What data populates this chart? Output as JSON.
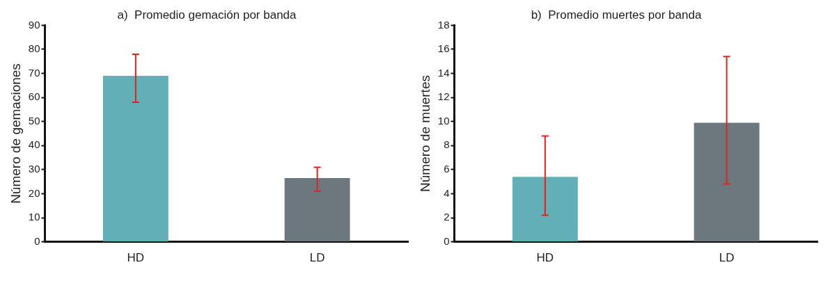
{
  "chart_data": [
    {
      "type": "bar",
      "title": "a)  Promedio gemación por banda",
      "ylabel": "Número de gemaciones",
      "categories": [
        "HD",
        "LD"
      ],
      "values": [
        69,
        26.5
      ],
      "colors": [
        "#63afb7",
        "#6c787d"
      ],
      "errors": [
        [
          58,
          78
        ],
        [
          21,
          31
        ]
      ],
      "ylim": [
        0,
        90
      ],
      "yticks": [
        0,
        10,
        20,
        30,
        40,
        50,
        60,
        70,
        80,
        90
      ],
      "grid": false,
      "legend": false
    },
    {
      "type": "bar",
      "title": "b)  Promedio muertes por banda",
      "ylabel": "Número de muertes",
      "categories": [
        "HD",
        "LD"
      ],
      "values": [
        5.4,
        9.9
      ],
      "colors": [
        "#63afb7",
        "#6c787d"
      ],
      "errors": [
        [
          2.2,
          8.8
        ],
        [
          4.8,
          15.4
        ]
      ],
      "ylim": [
        0,
        18
      ],
      "yticks": [
        0,
        2,
        4,
        6,
        8,
        10,
        12,
        14,
        16,
        18
      ],
      "grid": false,
      "legend": false
    }
  ]
}
